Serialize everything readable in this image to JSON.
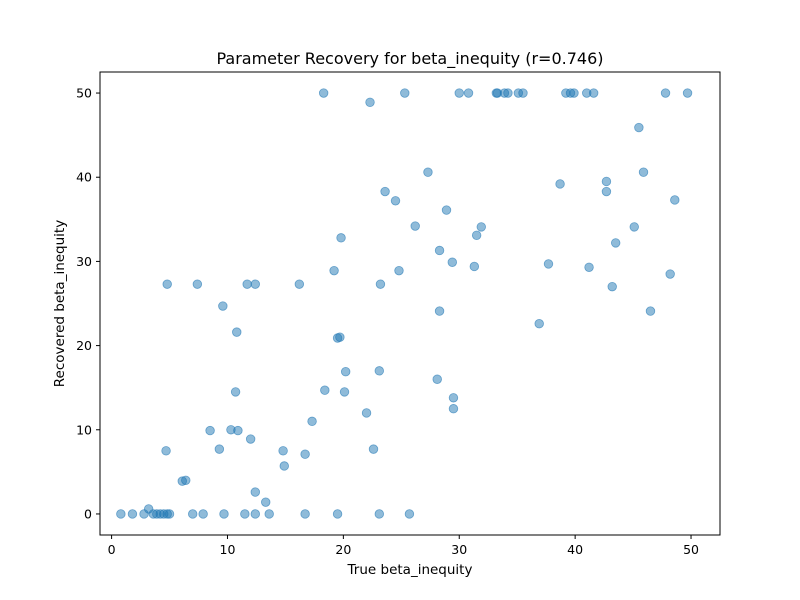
{
  "chart_data": {
    "type": "scatter",
    "title": "Parameter Recovery for beta_inequity (r=0.746)",
    "xlabel": "True beta_inequity",
    "ylabel": "Recovered beta_inequity",
    "xlim": [
      -1,
      52.5
    ],
    "ylim": [
      -2.5,
      52.5
    ],
    "xticks": [
      0,
      10,
      20,
      30,
      40,
      50
    ],
    "yticks": [
      0,
      10,
      20,
      30,
      40,
      50
    ],
    "grid": false,
    "point_color": "#1f77b4",
    "point_alpha": 0.5,
    "points": [
      [
        0.8,
        0
      ],
      [
        1.8,
        0
      ],
      [
        2.8,
        0
      ],
      [
        3.2,
        0.6
      ],
      [
        3.6,
        0
      ],
      [
        3.9,
        0
      ],
      [
        4.2,
        0
      ],
      [
        4.5,
        0
      ],
      [
        4.8,
        0
      ],
      [
        5.0,
        0
      ],
      [
        7.0,
        0
      ],
      [
        7.9,
        0
      ],
      [
        9.7,
        0
      ],
      [
        11.5,
        0
      ],
      [
        12.4,
        0
      ],
      [
        13.6,
        0
      ],
      [
        16.7,
        0
      ],
      [
        19.5,
        0
      ],
      [
        23.1,
        0
      ],
      [
        25.7,
        0
      ],
      [
        6.1,
        3.9
      ],
      [
        6.4,
        4.0
      ],
      [
        4.7,
        7.5
      ],
      [
        8.5,
        9.9
      ],
      [
        9.3,
        7.7
      ],
      [
        10.3,
        10.0
      ],
      [
        10.9,
        9.9
      ],
      [
        12.0,
        8.9
      ],
      [
        12.4,
        2.6
      ],
      [
        13.3,
        1.4
      ],
      [
        14.8,
        7.5
      ],
      [
        14.9,
        5.7
      ],
      [
        16.7,
        7.1
      ],
      [
        17.3,
        11.0
      ],
      [
        18.4,
        14.7
      ],
      [
        20.1,
        14.5
      ],
      [
        20.2,
        16.9
      ],
      [
        22.0,
        12.0
      ],
      [
        22.6,
        7.7
      ],
      [
        23.1,
        17.0
      ],
      [
        28.1,
        16.0
      ],
      [
        29.5,
        13.8
      ],
      [
        29.5,
        12.5
      ],
      [
        10.7,
        14.5
      ],
      [
        10.8,
        21.6
      ],
      [
        9.6,
        24.7
      ],
      [
        4.8,
        27.3
      ],
      [
        7.4,
        27.3
      ],
      [
        11.7,
        27.3
      ],
      [
        12.4,
        27.3
      ],
      [
        16.2,
        27.3
      ],
      [
        19.2,
        28.9
      ],
      [
        19.5,
        20.9
      ],
      [
        19.7,
        21.0
      ],
      [
        19.8,
        32.8
      ],
      [
        23.2,
        27.3
      ],
      [
        24.8,
        28.9
      ],
      [
        28.3,
        24.1
      ],
      [
        28.3,
        31.3
      ],
      [
        28.9,
        36.1
      ],
      [
        29.4,
        29.9
      ],
      [
        31.3,
        29.4
      ],
      [
        31.5,
        33.1
      ],
      [
        31.9,
        34.1
      ],
      [
        36.9,
        22.6
      ],
      [
        37.7,
        29.7
      ],
      [
        41.2,
        29.3
      ],
      [
        43.2,
        27.0
      ],
      [
        43.5,
        32.2
      ],
      [
        45.1,
        34.1
      ],
      [
        46.5,
        24.1
      ],
      [
        48.2,
        28.5
      ],
      [
        48.6,
        37.3
      ],
      [
        23.6,
        38.3
      ],
      [
        24.5,
        37.2
      ],
      [
        26.2,
        34.2
      ],
      [
        27.3,
        40.6
      ],
      [
        38.7,
        39.2
      ],
      [
        42.7,
        39.5
      ],
      [
        42.7,
        38.3
      ],
      [
        45.9,
        40.6
      ],
      [
        45.5,
        45.9
      ],
      [
        22.3,
        48.9
      ],
      [
        18.3,
        50
      ],
      [
        25.3,
        50
      ],
      [
        30.0,
        50
      ],
      [
        30.8,
        50
      ],
      [
        33.2,
        50
      ],
      [
        33.3,
        50
      ],
      [
        33.9,
        50
      ],
      [
        34.2,
        50
      ],
      [
        35.1,
        50
      ],
      [
        35.5,
        50
      ],
      [
        39.2,
        50
      ],
      [
        39.6,
        50
      ],
      [
        39.9,
        50
      ],
      [
        41.0,
        50
      ],
      [
        41.6,
        50
      ],
      [
        47.8,
        50
      ],
      [
        49.7,
        50
      ]
    ]
  }
}
